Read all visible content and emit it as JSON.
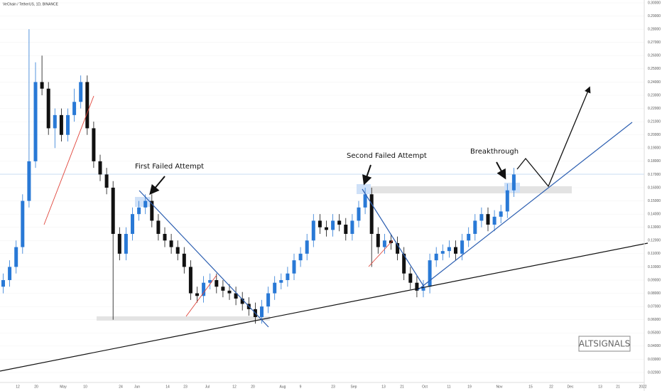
{
  "title": "VeChain / TetherUS, 1D, BINANCE",
  "annotations": [
    "First Failed Attempt",
    "Second Failed Attempt",
    "Breakthrough"
  ],
  "watermark": "ALTSIGNALS",
  "chart_data": {
    "type": "candlestick",
    "up_color": "#2979d6",
    "down_color": "#111111",
    "ylim": [
      0.02,
      0.3
    ],
    "yticks": [
      {
        "value": 0.02,
        "label": "0.02000"
      },
      {
        "value": 0.03,
        "label": "0.03000"
      },
      {
        "value": 0.04,
        "label": "0.04000"
      },
      {
        "value": 0.05,
        "label": "0.05000"
      },
      {
        "value": 0.06,
        "label": "0.06000"
      },
      {
        "value": 0.07,
        "label": "0.07000"
      },
      {
        "value": 0.08,
        "label": "0.08000"
      },
      {
        "value": 0.09,
        "label": "0.09000"
      },
      {
        "value": 0.1,
        "label": "0.10000"
      },
      {
        "value": 0.11,
        "label": "0.11000"
      },
      {
        "value": 0.12,
        "label": "0.12000"
      },
      {
        "value": 0.13,
        "label": "0.13000"
      },
      {
        "value": 0.14,
        "label": "0.14000"
      },
      {
        "value": 0.15,
        "label": "0.15000"
      },
      {
        "value": 0.16,
        "label": "0.16000"
      },
      {
        "value": 0.17,
        "label": "0.17000"
      },
      {
        "value": 0.18,
        "label": "0.18000"
      },
      {
        "value": 0.19,
        "label": "0.19000"
      },
      {
        "value": 0.2,
        "label": "0.20000"
      },
      {
        "value": 0.21,
        "label": "0.21000"
      },
      {
        "value": 0.22,
        "label": "0.22000"
      },
      {
        "value": 0.23,
        "label": "0.23000"
      },
      {
        "value": 0.24,
        "label": "0.24000"
      },
      {
        "value": 0.25,
        "label": "0.25000"
      },
      {
        "value": 0.26,
        "label": "0.26000"
      },
      {
        "value": 0.27,
        "label": "0.27000"
      },
      {
        "value": 0.28,
        "label": "0.28000"
      },
      {
        "value": 0.29,
        "label": "0.29000"
      },
      {
        "value": 0.3,
        "label": "0.30000"
      }
    ],
    "x_labels": [
      "12",
      "20",
      "May",
      "10",
      "24",
      "Jun",
      "14",
      "23",
      "Jul",
      "12",
      "20",
      "Aug",
      "9",
      "23",
      "Sep",
      "13",
      "21",
      "Oct",
      "11",
      "19",
      "Nov",
      "15",
      "22",
      "Dec",
      "13",
      "21",
      "2022"
    ],
    "open": [
      0.085,
      0.09,
      0.1,
      0.115,
      0.15,
      0.18,
      0.24,
      0.235,
      0.205,
      0.215,
      0.2,
      0.215,
      0.225,
      0.24,
      0.205,
      0.18,
      0.17,
      0.16,
      0.125,
      0.11,
      0.125,
      0.14,
      0.145,
      0.15,
      0.135,
      0.125,
      0.12,
      0.115,
      0.11,
      0.1,
      0.08,
      0.078,
      0.088,
      0.09,
      0.085,
      0.082,
      0.08,
      0.076,
      0.072,
      0.068,
      0.062,
      0.07,
      0.08,
      0.088,
      0.09,
      0.095,
      0.105,
      0.11,
      0.12,
      0.135,
      0.13,
      0.128,
      0.135,
      0.132,
      0.125,
      0.135,
      0.145,
      0.155,
      0.125,
      0.115,
      0.12,
      0.118,
      0.11,
      0.095,
      0.088,
      0.082,
      0.085,
      0.105,
      0.11,
      0.112,
      0.115,
      0.11,
      0.12,
      0.125,
      0.135,
      0.14,
      0.132,
      0.138,
      0.142,
      0.158
    ],
    "high": [
      0.095,
      0.105,
      0.12,
      0.155,
      0.28,
      0.255,
      0.26,
      0.24,
      0.22,
      0.22,
      0.22,
      0.235,
      0.245,
      0.245,
      0.21,
      0.185,
      0.175,
      0.165,
      0.13,
      0.13,
      0.145,
      0.15,
      0.155,
      0.155,
      0.14,
      0.13,
      0.125,
      0.12,
      0.115,
      0.105,
      0.085,
      0.093,
      0.095,
      0.095,
      0.09,
      0.087,
      0.085,
      0.081,
      0.077,
      0.073,
      0.075,
      0.085,
      0.093,
      0.095,
      0.1,
      0.11,
      0.115,
      0.125,
      0.14,
      0.14,
      0.135,
      0.14,
      0.14,
      0.137,
      0.14,
      0.15,
      0.16,
      0.16,
      0.13,
      0.125,
      0.125,
      0.123,
      0.115,
      0.1,
      0.093,
      0.09,
      0.11,
      0.115,
      0.117,
      0.12,
      0.12,
      0.125,
      0.13,
      0.14,
      0.145,
      0.145,
      0.143,
      0.147,
      0.163,
      0.175
    ],
    "low": [
      0.08,
      0.085,
      0.095,
      0.11,
      0.145,
      0.175,
      0.23,
      0.2,
      0.19,
      0.195,
      0.195,
      0.21,
      0.22,
      0.2,
      0.175,
      0.165,
      0.155,
      0.06,
      0.105,
      0.105,
      0.12,
      0.135,
      0.14,
      0.13,
      0.12,
      0.115,
      0.11,
      0.105,
      0.095,
      0.075,
      0.073,
      0.073,
      0.083,
      0.08,
      0.077,
      0.075,
      0.071,
      0.067,
      0.063,
      0.057,
      0.057,
      0.065,
      0.075,
      0.083,
      0.085,
      0.09,
      0.1,
      0.105,
      0.115,
      0.125,
      0.123,
      0.123,
      0.127,
      0.12,
      0.12,
      0.13,
      0.14,
      0.1,
      0.11,
      0.11,
      0.113,
      0.105,
      0.09,
      0.083,
      0.077,
      0.077,
      0.08,
      0.1,
      0.105,
      0.107,
      0.105,
      0.105,
      0.115,
      0.12,
      0.13,
      0.127,
      0.127,
      0.133,
      0.137,
      0.153
    ],
    "close": [
      0.09,
      0.1,
      0.115,
      0.15,
      0.18,
      0.24,
      0.235,
      0.205,
      0.215,
      0.2,
      0.215,
      0.225,
      0.24,
      0.205,
      0.18,
      0.17,
      0.16,
      0.125,
      0.11,
      0.125,
      0.14,
      0.145,
      0.15,
      0.135,
      0.125,
      0.12,
      0.115,
      0.11,
      0.1,
      0.08,
      0.078,
      0.088,
      0.09,
      0.085,
      0.082,
      0.08,
      0.076,
      0.072,
      0.068,
      0.062,
      0.07,
      0.08,
      0.088,
      0.09,
      0.095,
      0.105,
      0.11,
      0.12,
      0.135,
      0.13,
      0.128,
      0.135,
      0.132,
      0.125,
      0.135,
      0.145,
      0.155,
      0.125,
      0.115,
      0.12,
      0.118,
      0.11,
      0.095,
      0.088,
      0.082,
      0.085,
      0.105,
      0.11,
      0.112,
      0.115,
      0.11,
      0.12,
      0.125,
      0.135,
      0.14,
      0.132,
      0.138,
      0.142,
      0.158,
      0.17
    ]
  }
}
